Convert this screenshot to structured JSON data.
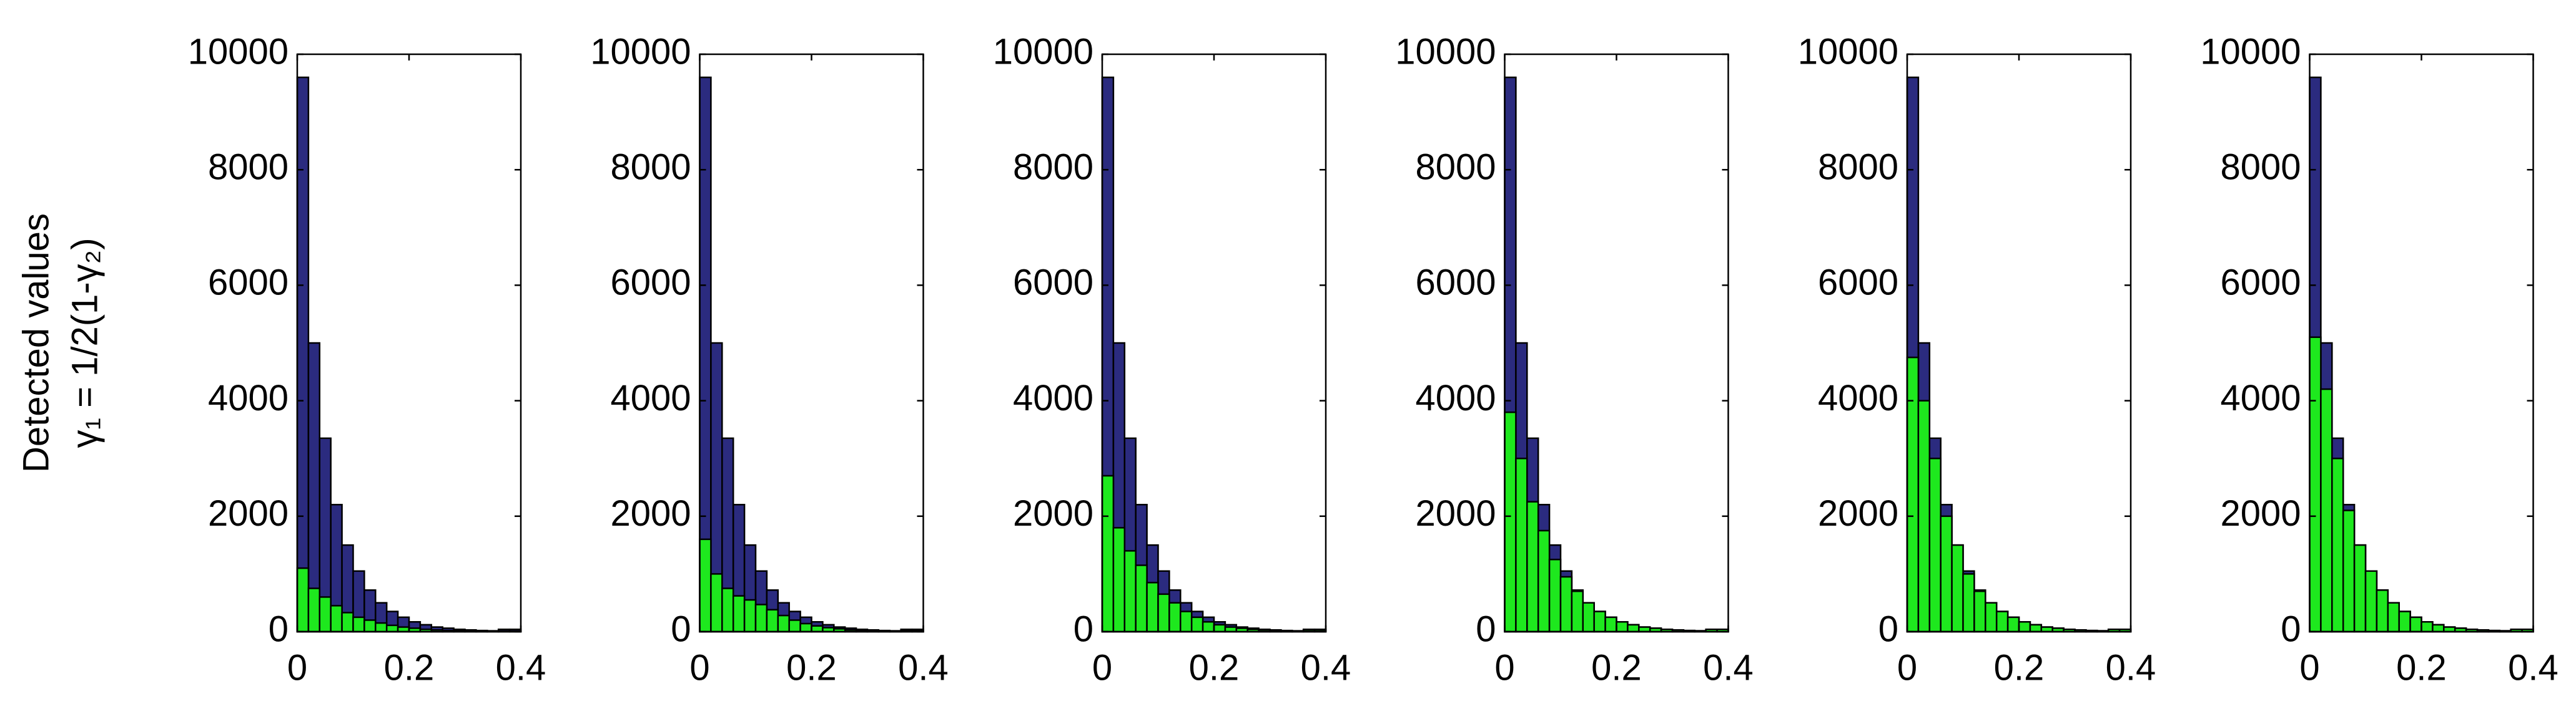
{
  "chart_data": [
    {
      "type": "histogram",
      "y_label": [
        "Detected values",
        "γ₁ = 1/2(1-γ₂)"
      ],
      "bins": [
        0,
        0.02,
        0.04,
        0.06,
        0.08,
        0.1,
        0.12,
        0.14,
        0.16,
        0.18,
        0.2,
        0.22,
        0.24,
        0.26,
        0.28,
        0.3,
        0.32,
        0.34,
        0.36,
        0.38,
        0.4
      ],
      "series": [
        {
          "color": "#2b2b7f",
          "values": [
            9600,
            5000,
            3350,
            2200,
            1500,
            1050,
            720,
            500,
            350,
            250,
            170,
            120,
            80,
            60,
            40,
            30,
            20,
            15,
            40,
            40
          ]
        },
        {
          "color": "#1ee81e",
          "values": [
            1100,
            750,
            600,
            450,
            330,
            250,
            200,
            150,
            110,
            80,
            60,
            40,
            30,
            20,
            15,
            10,
            8,
            5,
            10,
            10
          ]
        }
      ],
      "xlim": [
        0,
        0.4
      ],
      "xticks": [
        0,
        0.2,
        0.4
      ],
      "ylim": [
        0,
        10000
      ],
      "yticks": [
        0,
        2000,
        4000,
        6000,
        8000,
        10000
      ]
    },
    {
      "type": "histogram",
      "bins": [
        0,
        0.02,
        0.04,
        0.06,
        0.08,
        0.1,
        0.12,
        0.14,
        0.16,
        0.18,
        0.2,
        0.22,
        0.24,
        0.26,
        0.28,
        0.3,
        0.32,
        0.34,
        0.36,
        0.38,
        0.4
      ],
      "series": [
        {
          "color": "#2b2b7f",
          "values": [
            9600,
            5000,
            3350,
            2200,
            1500,
            1050,
            720,
            500,
            350,
            250,
            170,
            120,
            80,
            60,
            40,
            30,
            20,
            15,
            40,
            40
          ]
        },
        {
          "color": "#1ee81e",
          "values": [
            1600,
            1000,
            750,
            620,
            550,
            470,
            380,
            280,
            200,
            140,
            100,
            70,
            50,
            30,
            20,
            15,
            10,
            8,
            20,
            20
          ]
        }
      ],
      "xlim": [
        0,
        0.4
      ],
      "xticks": [
        0,
        0.2,
        0.4
      ],
      "ylim": [
        0,
        10000
      ],
      "yticks": [
        0,
        2000,
        4000,
        6000,
        8000,
        10000
      ]
    },
    {
      "type": "histogram",
      "bins": [
        0,
        0.02,
        0.04,
        0.06,
        0.08,
        0.1,
        0.12,
        0.14,
        0.16,
        0.18,
        0.2,
        0.22,
        0.24,
        0.26,
        0.28,
        0.3,
        0.32,
        0.34,
        0.36,
        0.38,
        0.4
      ],
      "series": [
        {
          "color": "#2b2b7f",
          "values": [
            9600,
            5000,
            3350,
            2200,
            1500,
            1050,
            720,
            500,
            350,
            250,
            170,
            120,
            80,
            60,
            40,
            30,
            20,
            15,
            40,
            40
          ]
        },
        {
          "color": "#1ee81e",
          "values": [
            2700,
            1800,
            1400,
            1150,
            850,
            650,
            500,
            350,
            250,
            170,
            120,
            80,
            60,
            40,
            30,
            20,
            15,
            10,
            30,
            30
          ]
        }
      ],
      "xlim": [
        0,
        0.4
      ],
      "xticks": [
        0,
        0.2,
        0.4
      ],
      "ylim": [
        0,
        10000
      ],
      "yticks": [
        0,
        2000,
        4000,
        6000,
        8000,
        10000
      ]
    },
    {
      "type": "histogram",
      "bins": [
        0,
        0.02,
        0.04,
        0.06,
        0.08,
        0.1,
        0.12,
        0.14,
        0.16,
        0.18,
        0.2,
        0.22,
        0.24,
        0.26,
        0.28,
        0.3,
        0.32,
        0.34,
        0.36,
        0.38,
        0.4
      ],
      "series": [
        {
          "color": "#2b2b7f",
          "values": [
            9600,
            5000,
            3350,
            2200,
            1500,
            1050,
            720,
            500,
            350,
            250,
            170,
            120,
            80,
            60,
            40,
            30,
            20,
            15,
            40,
            40
          ]
        },
        {
          "color": "#1ee81e",
          "values": [
            3800,
            3000,
            2250,
            1750,
            1250,
            950,
            700,
            500,
            350,
            250,
            170,
            120,
            80,
            60,
            40,
            30,
            20,
            15,
            40,
            40
          ]
        }
      ],
      "xlim": [
        0,
        0.4
      ],
      "xticks": [
        0,
        0.2,
        0.4
      ],
      "ylim": [
        0,
        10000
      ],
      "yticks": [
        0,
        2000,
        4000,
        6000,
        8000,
        10000
      ]
    },
    {
      "type": "histogram",
      "bins": [
        0,
        0.02,
        0.04,
        0.06,
        0.08,
        0.1,
        0.12,
        0.14,
        0.16,
        0.18,
        0.2,
        0.22,
        0.24,
        0.26,
        0.28,
        0.3,
        0.32,
        0.34,
        0.36,
        0.38,
        0.4
      ],
      "series": [
        {
          "color": "#2b2b7f",
          "values": [
            9600,
            5000,
            3350,
            2200,
            1500,
            1050,
            720,
            500,
            350,
            250,
            170,
            120,
            80,
            60,
            40,
            30,
            20,
            15,
            40,
            40
          ]
        },
        {
          "color": "#1ee81e",
          "values": [
            4750,
            4000,
            3000,
            2000,
            1500,
            1000,
            700,
            500,
            350,
            250,
            170,
            120,
            80,
            60,
            40,
            30,
            20,
            15,
            40,
            40
          ]
        }
      ],
      "xlim": [
        0,
        0.4
      ],
      "xticks": [
        0,
        0.2,
        0.4
      ],
      "ylim": [
        0,
        10000
      ],
      "yticks": [
        0,
        2000,
        4000,
        6000,
        8000,
        10000
      ]
    },
    {
      "type": "histogram",
      "bins": [
        0,
        0.02,
        0.04,
        0.06,
        0.08,
        0.1,
        0.12,
        0.14,
        0.16,
        0.18,
        0.2,
        0.22,
        0.24,
        0.26,
        0.28,
        0.3,
        0.32,
        0.34,
        0.36,
        0.38,
        0.4
      ],
      "series": [
        {
          "color": "#2b2b7f",
          "values": [
            9600,
            5000,
            3350,
            2200,
            1500,
            1050,
            720,
            500,
            350,
            250,
            170,
            120,
            80,
            60,
            40,
            30,
            20,
            15,
            40,
            40
          ]
        },
        {
          "color": "#1ee81e",
          "values": [
            5100,
            4200,
            3000,
            2100,
            1500,
            1050,
            720,
            500,
            350,
            250,
            170,
            120,
            80,
            60,
            40,
            30,
            20,
            15,
            40,
            40
          ]
        }
      ],
      "xlim": [
        0,
        0.4
      ],
      "xticks": [
        0,
        0.2,
        0.4
      ],
      "ylim": [
        0,
        10000
      ],
      "yticks": [
        0,
        2000,
        4000,
        6000,
        8000,
        10000
      ]
    }
  ]
}
